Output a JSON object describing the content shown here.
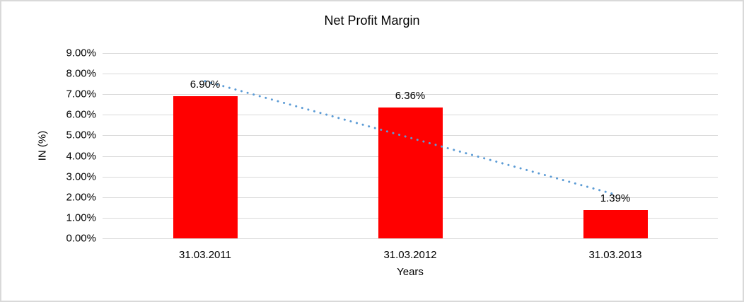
{
  "chart_data": {
    "type": "bar",
    "title": "Net Profit Margin",
    "xlabel": "Years",
    "ylabel": "IN (%)",
    "categories": [
      "31.03.2011",
      "31.03.2012",
      "31.03.2013"
    ],
    "values": [
      6.9,
      6.36,
      1.39
    ],
    "data_labels": [
      "6.90%",
      "6.36%",
      "1.39%"
    ],
    "y_ticks_top_to_bottom": [
      "9.00%",
      "8.00%",
      "7.00%",
      "6.00%",
      "5.00%",
      "4.00%",
      "3.00%",
      "2.00%",
      "1.00%",
      "0.00%"
    ],
    "ylim": [
      0,
      9
    ],
    "grid": true,
    "legend": "none",
    "bar_color": "#FF0000",
    "gridline_color": "#D9D9D9",
    "frame_border_color": "#D9D9D9",
    "text_color": "#000000",
    "trendline": {
      "type": "linear",
      "style": "dotted",
      "color": "#5B9BD5"
    }
  }
}
